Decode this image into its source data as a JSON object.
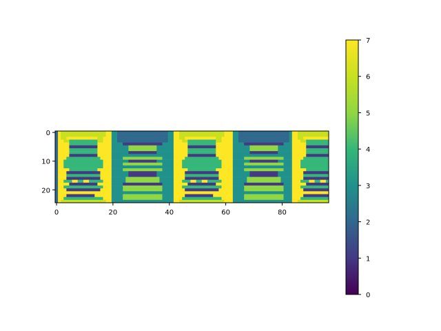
{
  "chart_data": {
    "type": "heatmap",
    "title": "",
    "xlabel": "",
    "ylabel": "",
    "rows": 25,
    "cols": 97,
    "value_range": [
      0,
      7
    ],
    "colormap": "viridis",
    "x_ticks": [
      0,
      20,
      40,
      60,
      80
    ],
    "x_tick_labels": [
      "0",
      "20",
      "40",
      "60",
      "80"
    ],
    "y_ticks": [
      0,
      10,
      20
    ],
    "y_tick_labels": [
      "0",
      "10",
      "20"
    ],
    "colorbar": {
      "ticks": [
        0,
        1,
        2,
        3,
        4,
        5,
        6,
        7
      ],
      "tick_labels": [
        "0",
        "1",
        "2",
        "3",
        "4",
        "5",
        "6",
        "7"
      ]
    },
    "description_of_pattern": "repeating tiles of sprite-like figures; yellow-background tiles at columns 1-19, 42-62, 84-96 and teal-background tiles at columns 20-41, 63-83",
    "tiles": [
      {
        "kind": "A",
        "start": 0,
        "end": 20
      },
      {
        "kind": "B",
        "start": 20,
        "end": 42
      },
      {
        "kind": "A",
        "start": 42,
        "end": 63
      },
      {
        "kind": "B",
        "start": 63,
        "end": 84
      },
      {
        "kind": "A",
        "start": 84,
        "end": 97
      }
    ],
    "tile_A": {
      "background": 7,
      "left_edge_col_value": 2,
      "rows_spec": [
        {
          "r": [
            0,
            1
          ],
          "fill": 6,
          "x": [
            2,
            18
          ]
        },
        {
          "r": [
            2,
            2
          ],
          "fill": 6,
          "x": [
            2,
            4
          ]
        },
        {
          "r": [
            3,
            3
          ],
          "fill": 6,
          "x": [
            3,
            5
          ]
        },
        {
          "r": [
            2,
            3
          ],
          "fill": 6,
          "x": [
            15,
            17
          ]
        },
        {
          "r": [
            3,
            4
          ],
          "fill": 4,
          "x": [
            5,
            15
          ]
        },
        {
          "r": [
            5,
            5
          ],
          "fill": 1,
          "x": [
            5,
            15
          ]
        },
        {
          "r": [
            6,
            7
          ],
          "fill": 4,
          "x": [
            5,
            15
          ]
        },
        {
          "r": [
            8,
            8
          ],
          "fill": 1,
          "x": [
            5,
            15
          ]
        },
        {
          "r": [
            9,
            9
          ],
          "fill": 4,
          "x": [
            4,
            16
          ]
        },
        {
          "r": [
            10,
            12
          ],
          "fill": 4,
          "x": [
            3,
            17
          ]
        },
        {
          "r": [
            13,
            13
          ],
          "fill": 4,
          "x": [
            5,
            15
          ]
        },
        {
          "r": [
            14,
            14
          ],
          "fill": 1,
          "x": [
            4,
            16
          ]
        },
        {
          "r": [
            15,
            15
          ],
          "fill": 4,
          "x": [
            4,
            16
          ]
        },
        {
          "r": [
            16,
            16
          ],
          "fill": 1,
          "x": [
            4,
            16
          ]
        },
        {
          "r": [
            17,
            17
          ],
          "fill": 4,
          "x": [
            3,
            17
          ]
        },
        {
          "r": [
            17,
            17
          ],
          "fill": 7,
          "x": [
            6,
            8
          ]
        },
        {
          "r": [
            17,
            17
          ],
          "fill": 7,
          "x": [
            10,
            12
          ]
        },
        {
          "r": [
            18,
            18
          ],
          "fill": 1,
          "x": [
            5,
            15
          ]
        },
        {
          "r": [
            19,
            19
          ],
          "fill": 4,
          "x": [
            3,
            17
          ]
        },
        {
          "r": [
            20,
            20
          ],
          "fill": 1,
          "x": [
            4,
            16
          ]
        },
        {
          "r": [
            21,
            21
          ],
          "fill": 7,
          "x": [
            4,
            14
          ]
        },
        {
          "r": [
            22,
            22
          ],
          "fill": 1,
          "x": [
            4,
            14
          ]
        },
        {
          "r": [
            23,
            23
          ],
          "fill": 4,
          "x": [
            3,
            17
          ]
        },
        {
          "r": [
            24,
            24
          ],
          "fill": 6,
          "x": [
            2,
            18
          ]
        }
      ]
    },
    "tile_B": {
      "background": 3,
      "rows_spec": [
        {
          "r": [
            0,
            3
          ],
          "fill": 2,
          "x": [
            2,
            20
          ]
        },
        {
          "r": [
            4,
            4
          ],
          "fill": 1,
          "x": [
            4,
            18
          ]
        },
        {
          "r": [
            5,
            6
          ],
          "fill": 5,
          "x": [
            6,
            16
          ]
        },
        {
          "r": [
            7,
            7
          ],
          "fill": 1,
          "x": [
            6,
            16
          ]
        },
        {
          "r": [
            8,
            8
          ],
          "fill": 3,
          "x": [
            6,
            16
          ]
        },
        {
          "r": [
            9,
            9
          ],
          "fill": 5,
          "x": [
            4,
            18
          ]
        },
        {
          "r": [
            10,
            10
          ],
          "fill": 1,
          "x": [
            6,
            16
          ]
        },
        {
          "r": [
            11,
            11
          ],
          "fill": 5,
          "x": [
            4,
            18
          ]
        },
        {
          "r": [
            12,
            12
          ],
          "fill": 3,
          "x": [
            5,
            17
          ]
        },
        {
          "r": [
            13,
            13
          ],
          "fill": 5,
          "x": [
            4,
            18
          ]
        },
        {
          "r": [
            14,
            15
          ],
          "fill": 1,
          "x": [
            6,
            16
          ]
        },
        {
          "r": [
            16,
            17
          ],
          "fill": 5,
          "x": [
            5,
            17
          ]
        },
        {
          "r": [
            18,
            18
          ],
          "fill": 1,
          "x": [
            4,
            18
          ]
        },
        {
          "r": [
            19,
            20
          ],
          "fill": 5,
          "x": [
            4,
            18
          ]
        },
        {
          "r": [
            21,
            21
          ],
          "fill": 3,
          "x": [
            8,
            14
          ]
        },
        {
          "r": [
            22,
            23
          ],
          "fill": 5,
          "x": [
            4,
            18
          ]
        },
        {
          "r": [
            24,
            24
          ],
          "fill": 3,
          "x": [
            0,
            22
          ]
        }
      ]
    }
  }
}
